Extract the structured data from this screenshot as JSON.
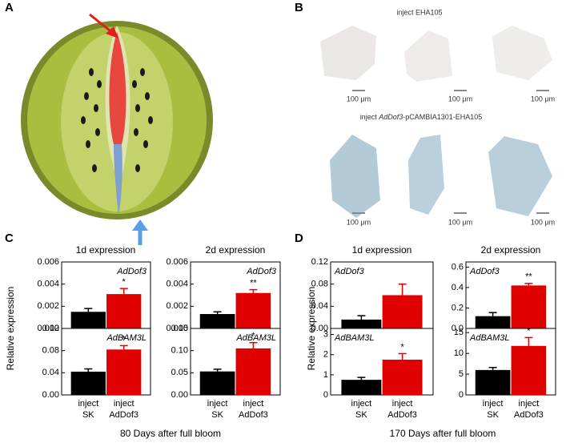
{
  "panels": {
    "a": "A",
    "b": "B",
    "c": "C",
    "d": "D"
  },
  "panel_b": {
    "top_label": "inject EHA105",
    "bottom_label_prefix": "inject ",
    "bottom_label_gene": "AdDof3",
    "bottom_label_suffix": "-pCAMBIA1301-EHA105",
    "scale_bars": [
      "100 μm",
      "100 μm",
      "100 μm",
      "100 μm",
      "100 μm",
      "100 μm"
    ]
  },
  "panel_c": {
    "columns": [
      "1d expression",
      "2d expression"
    ],
    "y_label": "Relative expression",
    "x_label": "80 Days after full bloom"
  },
  "panel_d": {
    "columns": [
      "1d expression",
      "2d expression"
    ],
    "y_label": "Relative expression",
    "x_label": "170 Days after full bloom"
  },
  "chart_data": [
    {
      "type": "bar",
      "title": "AdDof3",
      "categories": [
        null,
        null
      ],
      "values": [
        0.0015,
        0.0031
      ],
      "errors": [
        0.0003,
        0.0005
      ],
      "annotations": [
        null,
        "*"
      ],
      "colors": [
        "#000000",
        "#e00000"
      ],
      "ylim": [
        0,
        0.006
      ],
      "yticks": [
        {
          "value": 0,
          "label": "0.000"
        },
        {
          "value": 0.002,
          "label": "0.002"
        },
        {
          "value": 0.004,
          "label": "0.004"
        },
        {
          "value": 0.006,
          "label": "0.006"
        }
      ]
    },
    {
      "type": "bar",
      "title": "AdDof3",
      "categories": [
        null,
        null
      ],
      "values": [
        0.0013,
        0.0032
      ],
      "errors": [
        0.0002,
        0.0003
      ],
      "annotations": [
        null,
        "**"
      ],
      "colors": [
        "#000000",
        "#e00000"
      ],
      "ylim": [
        0,
        0.006
      ],
      "yticks": [
        {
          "value": 0,
          "label": "0.000"
        },
        {
          "value": 0.002,
          "label": "0.002"
        },
        {
          "value": 0.004,
          "label": "0.004"
        },
        {
          "value": 0.006,
          "label": "0.006"
        }
      ]
    },
    {
      "type": "bar",
      "title": "AdBAM3L",
      "categories": [
        [
          "inject",
          "SK"
        ],
        [
          "inject",
          "AdDof3"
        ]
      ],
      "values": [
        0.042,
        0.082
      ],
      "errors": [
        0.005,
        0.007
      ],
      "annotations": [
        null,
        "*"
      ],
      "colors": [
        "#000000",
        "#e00000"
      ],
      "ylim": [
        0,
        0.12
      ],
      "yticks": [
        {
          "value": 0,
          "label": "0.00"
        },
        0.04,
        0.08,
        0.12
      ]
    },
    {
      "type": "bar",
      "title": "AdBAM3L",
      "categories": [
        [
          "inject",
          "SK"
        ],
        [
          "inject",
          "AdDof3"
        ]
      ],
      "values": [
        0.053,
        0.105
      ],
      "errors": [
        0.005,
        0.013
      ],
      "annotations": [
        null,
        "*"
      ],
      "colors": [
        "#000000",
        "#e00000"
      ],
      "ylim": [
        0,
        0.15
      ],
      "yticks": [
        {
          "value": 0,
          "label": "0.00"
        },
        0.05,
        {
          "value": 0.1,
          "label": "0.10"
        },
        0.15
      ]
    },
    {
      "type": "bar",
      "title": "AdDof3",
      "categories": [
        null,
        null
      ],
      "values": [
        0.016,
        0.06
      ],
      "errors": [
        0.007,
        0.02
      ],
      "annotations": [
        null,
        null
      ],
      "colors": [
        "#000000",
        "#e00000"
      ],
      "ylim": [
        0,
        0.12
      ],
      "yticks": [
        {
          "value": 0,
          "label": "0.00"
        },
        0.04,
        0.08,
        0.12
      ]
    },
    {
      "type": "bar",
      "title": "AdDof3",
      "categories": [
        null,
        null
      ],
      "values": [
        0.12,
        0.42
      ],
      "errors": [
        0.035,
        0.02
      ],
      "annotations": [
        null,
        "**"
      ],
      "colors": [
        "#000000",
        "#e00000"
      ],
      "ylim": [
        0,
        0.65
      ],
      "yticks": [
        {
          "value": 0,
          "label": "0.0"
        },
        0.2,
        0.4,
        0.6
      ]
    },
    {
      "type": "bar",
      "title": "AdBAM3L",
      "categories": [
        [
          "inject",
          "SK"
        ],
        [
          "inject",
          "AdDof3"
        ]
      ],
      "values": [
        0.75,
        1.75
      ],
      "errors": [
        0.12,
        0.3
      ],
      "annotations": [
        null,
        "*"
      ],
      "colors": [
        "#000000",
        "#e00000"
      ],
      "ylim": [
        0,
        3.3
      ],
      "yticks": [
        0,
        1,
        2,
        3
      ]
    },
    {
      "type": "bar",
      "title": "AdBAM3L",
      "categories": [
        [
          "inject",
          "SK"
        ],
        [
          "inject",
          "AdDof3"
        ]
      ],
      "values": [
        6,
        11.8
      ],
      "errors": [
        0.6,
        2
      ],
      "annotations": [
        null,
        "*"
      ],
      "colors": [
        "#000000",
        "#e00000"
      ],
      "ylim": [
        0,
        16
      ],
      "yticks": [
        0,
        5,
        10,
        15
      ]
    }
  ]
}
